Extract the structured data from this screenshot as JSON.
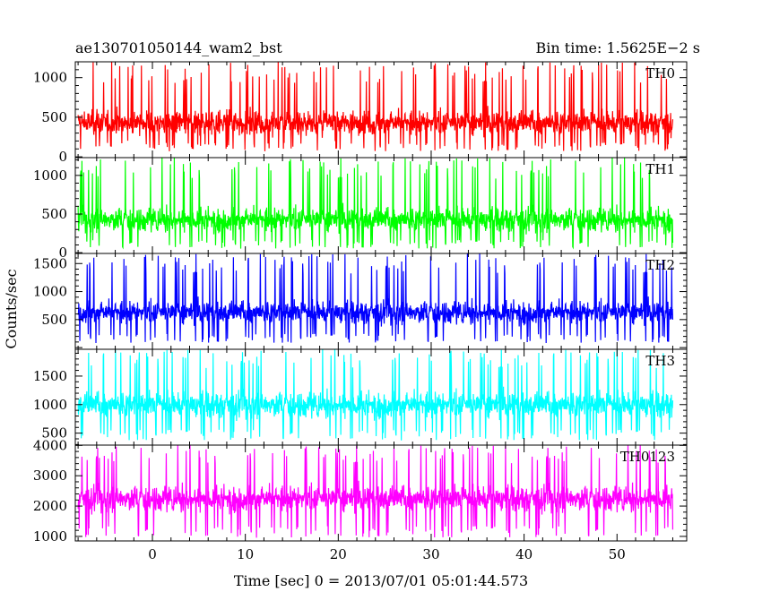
{
  "chart_data": {
    "type": "line",
    "title_left": "ae130701050144_wam2_bst",
    "title_right": "Bin time: 1.5625E−2 s",
    "xlabel": "Time [sec] 0 = 2013/07/01 05:01:44.573",
    "ylabel": "Counts/sec",
    "xlim": [
      -8.3,
      57.5
    ],
    "data_xrange": [
      -8.0,
      56.0
    ],
    "bin_time": 0.015625,
    "x_ticks": [
      0,
      10,
      20,
      30,
      40,
      50
    ],
    "grid": false,
    "panels": [
      {
        "name": "TH0",
        "color": "#ff0000",
        "ylim": [
          -10,
          1200
        ],
        "y_ticks": [
          0,
          500,
          1000
        ],
        "mean": 430,
        "spread": 190,
        "min": 70,
        "max": 1200
      },
      {
        "name": "TH1",
        "color": "#00ff00",
        "ylim": [
          -10,
          1230
        ],
        "y_ticks": [
          0,
          500,
          1000
        ],
        "mean": 430,
        "spread": 190,
        "min": 50,
        "max": 1230
      },
      {
        "name": "TH2",
        "color": "#0000ff",
        "ylim": [
          -30,
          1680
        ],
        "y_ticks": [
          500,
          1000,
          1500
        ],
        "mean": 630,
        "spread": 250,
        "min": 80,
        "max": 1680
      },
      {
        "name": "TH3",
        "color": "#00ffff",
        "ylim": [
          290,
          1970
        ],
        "y_ticks": [
          500,
          1000,
          1500
        ],
        "mean": 1000,
        "spread": 280,
        "min": 370,
        "max": 1970
      },
      {
        "name": "TH0123",
        "color": "#ff00ff",
        "ylim": [
          850,
          4010
        ],
        "y_ticks": [
          1000,
          2000,
          3000,
          4000
        ],
        "mean": 2250,
        "spread": 520,
        "min": 950,
        "max": 4010
      }
    ]
  }
}
